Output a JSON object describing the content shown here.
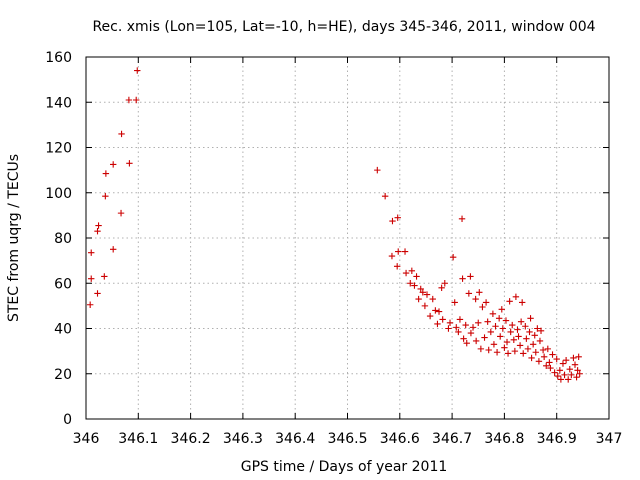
{
  "chart_data": {
    "type": "scatter",
    "title": "Rec. xmis (Lon=105, Lat=-10, h=HE), days 345-346, 2011, window 004",
    "xlabel": "GPS time / Days of year 2011",
    "ylabel": "STEC from uqrg / TECUs",
    "xlim": [
      346,
      347
    ],
    "ylim": [
      0,
      160
    ],
    "xticks": [
      "346",
      "346.1",
      "346.2",
      "346.3",
      "346.4",
      "346.5",
      "346.6",
      "346.7",
      "346.8",
      "346.9",
      "347"
    ],
    "yticks": [
      "0",
      "20",
      "40",
      "60",
      "80",
      "100",
      "120",
      "140",
      "160"
    ],
    "grid": true,
    "marker": "plus",
    "color": "#cc0000",
    "series": [
      {
        "points": [
          [
            346.008,
            50.5
          ],
          [
            346.01,
            62.0
          ],
          [
            346.01,
            73.5
          ],
          [
            346.022,
            55.5
          ],
          [
            346.022,
            83.0
          ],
          [
            346.024,
            85.5
          ],
          [
            346.035,
            63.0
          ],
          [
            346.037,
            98.5
          ],
          [
            346.038,
            108.5
          ],
          [
            346.052,
            112.5
          ],
          [
            346.052,
            75.0
          ],
          [
            346.067,
            91.0
          ],
          [
            346.068,
            126.0
          ],
          [
            346.082,
            141.0
          ],
          [
            346.083,
            113.0
          ],
          [
            346.096,
            141.0
          ],
          [
            346.098,
            154.0
          ],
          [
            346.557,
            110.0
          ],
          [
            346.572,
            98.5
          ],
          [
            346.585,
            72.0
          ],
          [
            346.586,
            87.5
          ],
          [
            346.595,
            67.5
          ],
          [
            346.596,
            89.0
          ],
          [
            346.597,
            74.0
          ],
          [
            346.61,
            74.0
          ],
          [
            346.612,
            64.5
          ],
          [
            346.62,
            60.0
          ],
          [
            346.623,
            65.5
          ],
          [
            346.628,
            59.0
          ],
          [
            346.632,
            63.0
          ],
          [
            346.636,
            53.0
          ],
          [
            346.64,
            57.5
          ],
          [
            346.644,
            56.0
          ],
          [
            346.648,
            50.0
          ],
          [
            346.652,
            55.0
          ],
          [
            346.658,
            45.5
          ],
          [
            346.663,
            53.0
          ],
          [
            346.668,
            48.0
          ],
          [
            346.672,
            42.0
          ],
          [
            346.675,
            47.5
          ],
          [
            346.68,
            58.0
          ],
          [
            346.682,
            44.0
          ],
          [
            346.686,
            60.0
          ],
          [
            346.693,
            40.0
          ],
          [
            346.696,
            42.5
          ],
          [
            346.702,
            71.5
          ],
          [
            346.705,
            51.5
          ],
          [
            346.708,
            40.5
          ],
          [
            346.712,
            38.5
          ],
          [
            346.715,
            44.0
          ],
          [
            346.719,
            88.5
          ],
          [
            346.72,
            62.0
          ],
          [
            346.722,
            35.5
          ],
          [
            346.726,
            41.5
          ],
          [
            346.728,
            33.5
          ],
          [
            346.732,
            55.5
          ],
          [
            346.735,
            63.0
          ],
          [
            346.736,
            38.0
          ],
          [
            346.74,
            40.5
          ],
          [
            346.745,
            53.0
          ],
          [
            346.746,
            34.5
          ],
          [
            346.75,
            42.5
          ],
          [
            346.752,
            56.0
          ],
          [
            346.755,
            31.0
          ],
          [
            346.758,
            49.5
          ],
          [
            346.762,
            36.0
          ],
          [
            346.765,
            51.5
          ],
          [
            346.768,
            43.0
          ],
          [
            346.77,
            30.5
          ],
          [
            346.774,
            38.5
          ],
          [
            346.778,
            46.5
          ],
          [
            346.78,
            33.0
          ],
          [
            346.783,
            41.0
          ],
          [
            346.786,
            29.5
          ],
          [
            346.79,
            44.5
          ],
          [
            346.792,
            36.5
          ],
          [
            346.795,
            48.5
          ],
          [
            346.797,
            40.0
          ],
          [
            346.8,
            31.5
          ],
          [
            346.803,
            43.5
          ],
          [
            346.805,
            34.0
          ],
          [
            346.807,
            29.0
          ],
          [
            346.81,
            52.0
          ],
          [
            346.812,
            38.5
          ],
          [
            346.815,
            41.5
          ],
          [
            346.818,
            35.0
          ],
          [
            346.82,
            30.0
          ],
          [
            346.822,
            54.0
          ],
          [
            346.825,
            39.5
          ],
          [
            346.827,
            36.5
          ],
          [
            346.83,
            32.5
          ],
          [
            346.832,
            43.0
          ],
          [
            346.834,
            51.5
          ],
          [
            346.836,
            29.0
          ],
          [
            346.84,
            41.0
          ],
          [
            346.842,
            35.5
          ],
          [
            346.845,
            31.0
          ],
          [
            346.848,
            38.5
          ],
          [
            346.85,
            44.5
          ],
          [
            346.852,
            27.0
          ],
          [
            346.855,
            33.0
          ],
          [
            346.858,
            37.0
          ],
          [
            346.86,
            29.5
          ],
          [
            346.863,
            40.0
          ],
          [
            346.866,
            25.5
          ],
          [
            346.868,
            34.5
          ],
          [
            346.87,
            39.0
          ],
          [
            346.874,
            30.5
          ],
          [
            346.876,
            27.5
          ],
          [
            346.88,
            23.5
          ],
          [
            346.883,
            31.0
          ],
          [
            346.886,
            25.0
          ],
          [
            346.888,
            22.5
          ],
          [
            346.892,
            28.5
          ],
          [
            346.896,
            20.5
          ],
          [
            346.9,
            26.5
          ],
          [
            346.902,
            19.0
          ],
          [
            346.906,
            21.5
          ],
          [
            346.908,
            17.5
          ],
          [
            346.912,
            24.5
          ],
          [
            346.915,
            19.5
          ],
          [
            346.918,
            26.0
          ],
          [
            346.922,
            17.5
          ],
          [
            346.925,
            22.0
          ],
          [
            346.928,
            19.5
          ],
          [
            346.932,
            27.0
          ],
          [
            346.935,
            24.0
          ],
          [
            346.938,
            18.5
          ],
          [
            346.94,
            21.5
          ],
          [
            346.942,
            27.5
          ],
          [
            346.944,
            20.0
          ]
        ]
      }
    ]
  }
}
